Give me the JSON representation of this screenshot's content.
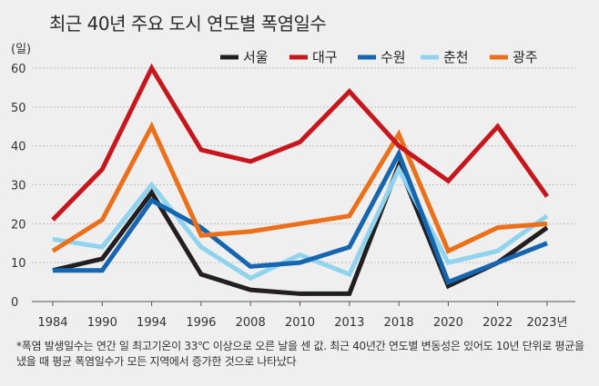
{
  "title": "최근 40년 주요 도시 연도별 폭염일수",
  "footnote": "*폭염 발생일수는 연간 일 최고기온이 33℃ 이상으로 오른 날을 센 값. 최근 40년간 연도별 변동성은 있어도 10년 단위로 평균을 냈을 때 평균 폭염일수가 모든 지역에서 증가한 것으로 나타났다",
  "chart_data": {
    "type": "line",
    "title": "최근 40년 주요 도시 연도별 폭염일수",
    "ylabel": "(일)",
    "xlabel": "",
    "ylim": [
      0,
      60
    ],
    "yticks": [
      0,
      10,
      20,
      30,
      40,
      50,
      60
    ],
    "grid": true,
    "legend": "top-right",
    "categories": [
      "1984",
      "1990",
      "1994",
      "1996",
      "2008",
      "2010",
      "2013",
      "2018",
      "2020",
      "2022",
      "2023년"
    ],
    "series": [
      {
        "name": "서울",
        "color": "#231f20",
        "values": [
          8,
          11,
          28,
          7,
          3,
          2,
          2,
          35,
          4,
          10,
          19
        ]
      },
      {
        "name": "대구",
        "color": "#c8161d",
        "values": [
          21,
          34,
          60,
          39,
          36,
          41,
          54,
          40,
          31,
          45,
          27
        ]
      },
      {
        "name": "수원",
        "color": "#1565b0",
        "values": [
          8,
          8,
          26,
          19,
          9,
          10,
          14,
          38,
          5,
          10,
          15
        ]
      },
      {
        "name": "춘천",
        "color": "#8fd3ef",
        "values": [
          16,
          14,
          30,
          14,
          6,
          12,
          7,
          34,
          10,
          13,
          22
        ]
      },
      {
        "name": "광주",
        "color": "#ec6f1a",
        "values": [
          13,
          21,
          45,
          17,
          18,
          20,
          22,
          43,
          13,
          19,
          20
        ]
      }
    ]
  }
}
